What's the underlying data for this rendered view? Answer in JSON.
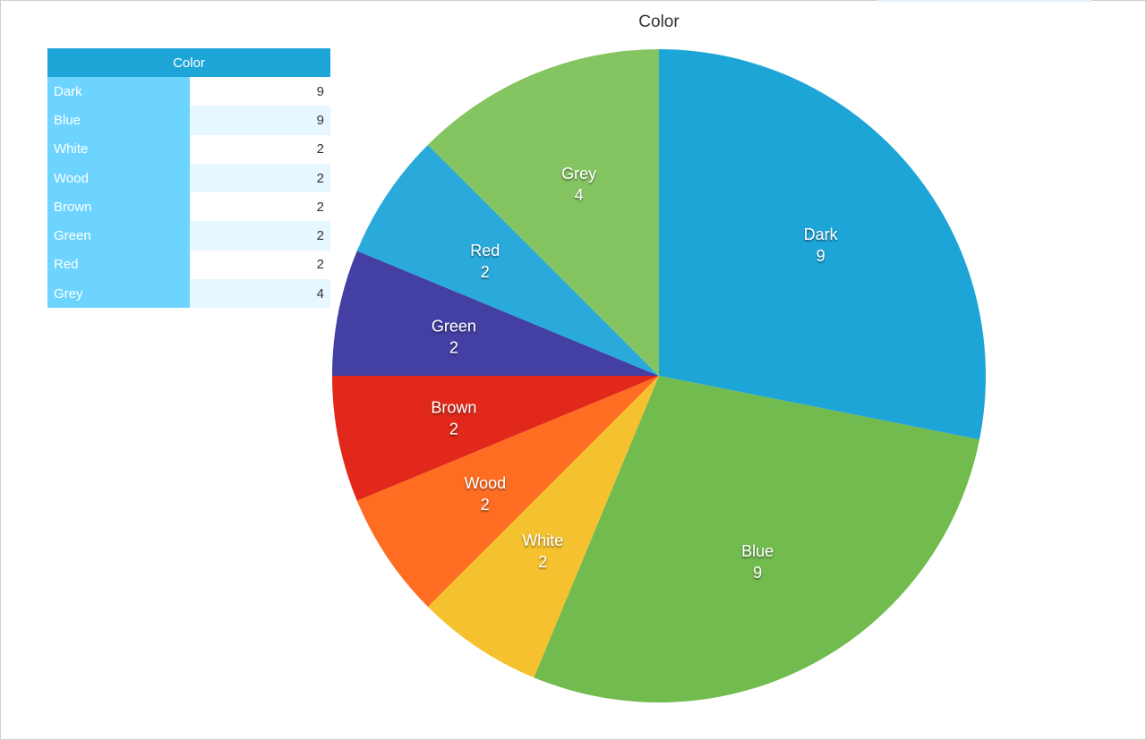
{
  "chart_data": {
    "type": "pie",
    "title": "Color",
    "table_header": "Color",
    "categories": [
      "Dark",
      "Blue",
      "White",
      "Wood",
      "Brown",
      "Green",
      "Red",
      "Grey"
    ],
    "values": [
      9,
      9,
      2,
      2,
      2,
      2,
      2,
      4
    ],
    "colors": [
      "#1ea5d8",
      "#72bb4f",
      "#f5c12e",
      "#fe6d22",
      "#e1281a",
      "#433fa3",
      "#2aaadb",
      "#84c461"
    ],
    "start": "12 o'clock",
    "direction": "clockwise"
  }
}
